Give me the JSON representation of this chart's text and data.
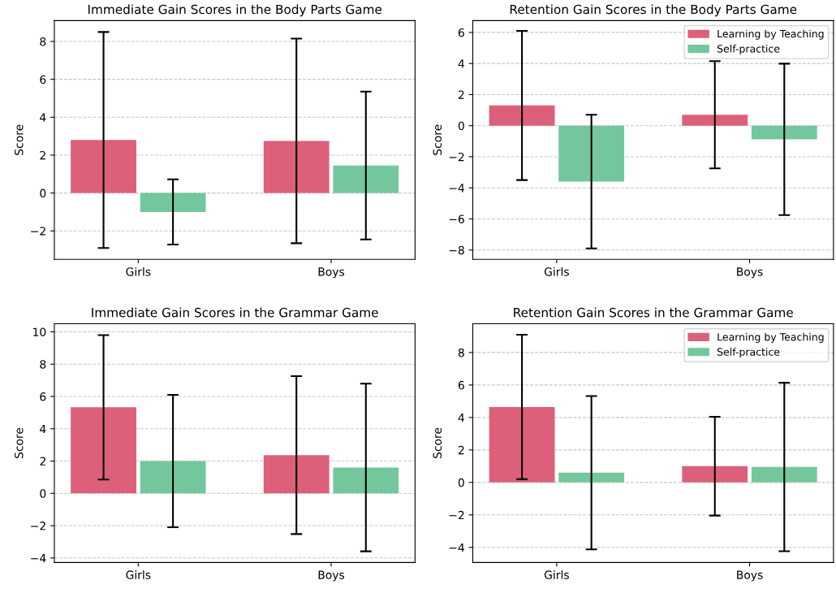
{
  "chart_data": [
    {
      "type": "bar",
      "title": "Immediate Gain Scores in the Body Parts Game",
      "ylabel": "Score",
      "categories": [
        "Girls",
        "Boys"
      ],
      "ylim": [
        -3.5,
        9.1
      ],
      "yticks": [
        {
          "value": -2,
          "label": "−2"
        },
        0,
        2,
        4,
        6,
        8
      ],
      "grid": "y",
      "legend": false,
      "series": [
        {
          "color": "#dc6079",
          "values": [
            2.8,
            2.75
          ],
          "errors": [
            5.7,
            5.4
          ]
        },
        {
          "color": "#74c79c",
          "values": [
            -1.0,
            1.45
          ],
          "errors": [
            1.72,
            3.9
          ]
        }
      ]
    },
    {
      "type": "bar",
      "title": "Retention Gain Scores in the Body Parts Game",
      "ylabel": "Score",
      "categories": [
        "Girls",
        "Boys"
      ],
      "ylim": [
        -8.6,
        6.76
      ],
      "yticks": [
        {
          "value": -8,
          "label": "−8"
        },
        {
          "value": -6,
          "label": "−6"
        },
        {
          "value": -4,
          "label": "−4"
        },
        {
          "value": -2,
          "label": "−2"
        },
        0,
        2,
        4,
        6
      ],
      "grid": "y",
      "legend": "top right",
      "series": [
        {
          "name": "Learning by Teaching",
          "color": "#dc6079",
          "values": [
            1.3,
            0.7
          ],
          "errors": [
            4.8,
            3.45
          ]
        },
        {
          "name": "Self-practice",
          "color": "#74c79c",
          "values": [
            -3.6,
            -0.88
          ],
          "errors": [
            4.3,
            4.87
          ]
        }
      ]
    },
    {
      "type": "bar",
      "title": "Immediate Gain Scores in the Grammar Game",
      "ylabel": "Score",
      "categories": [
        "Girls",
        "Boys"
      ],
      "ylim": [
        -4.28,
        10.5
      ],
      "yticks": [
        {
          "value": -4,
          "label": "−4"
        },
        {
          "value": -2,
          "label": "−2"
        },
        0,
        2,
        4,
        6,
        8,
        10
      ],
      "grid": "y",
      "legend": false,
      "series": [
        {
          "color": "#dc6079",
          "values": [
            5.33,
            2.37
          ],
          "errors": [
            4.47,
            4.89
          ]
        },
        {
          "color": "#74c79c",
          "values": [
            2.0,
            1.6
          ],
          "errors": [
            4.1,
            5.19
          ]
        }
      ]
    },
    {
      "type": "bar",
      "title": "Retention Gain Scores in the Grammar Game",
      "ylabel": "Score",
      "categories": [
        "Girls",
        "Boys"
      ],
      "ylim": [
        -4.93,
        9.77
      ],
      "yticks": [
        {
          "value": -4,
          "label": "−4"
        },
        {
          "value": -2,
          "label": "−2"
        },
        0,
        2,
        4,
        6,
        8
      ],
      "grid": "y",
      "legend": "top right",
      "series": [
        {
          "name": "Learning by Teaching",
          "color": "#dc6079",
          "values": [
            4.65,
            1.0
          ],
          "errors": [
            4.45,
            3.04
          ]
        },
        {
          "name": "Self-practice",
          "color": "#74c79c",
          "values": [
            0.6,
            0.95
          ],
          "errors": [
            4.72,
            5.19
          ]
        }
      ]
    }
  ]
}
